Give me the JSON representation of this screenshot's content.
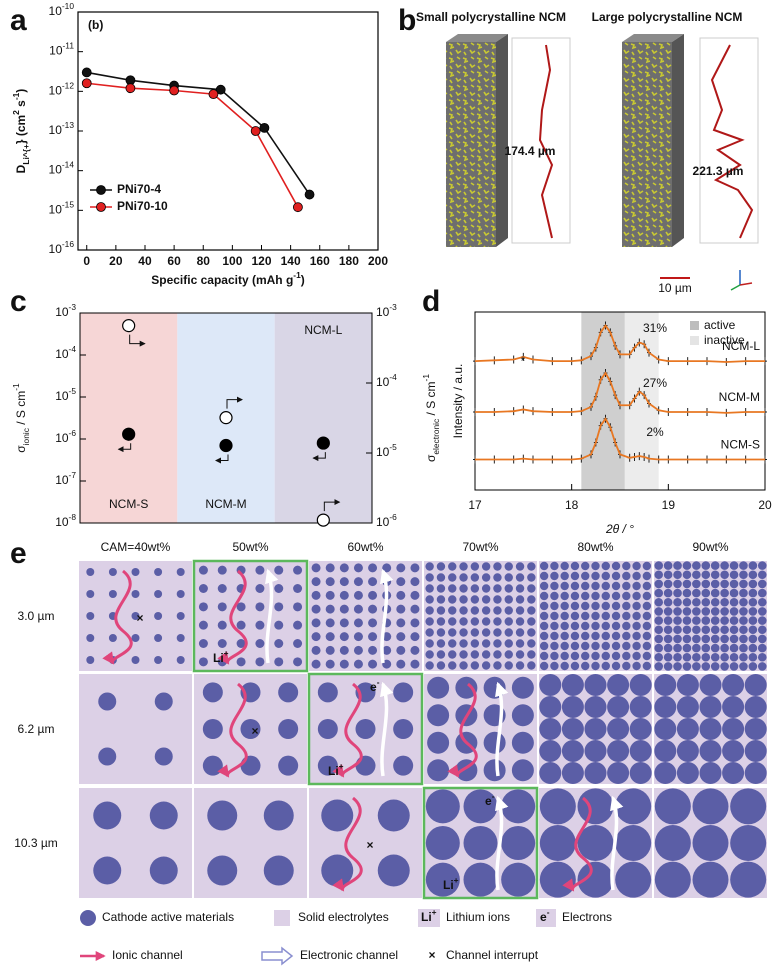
{
  "chart_data": [
    {
      "type": "line",
      "label": "a",
      "annotation": "(b)",
      "log_y": true,
      "xlabel": "Specific capacity (mAh g^{-1})",
      "ylabel": "D_{Li^{+}} (cm^{2} s^{-1})",
      "xlim": [
        -6,
        200
      ],
      "xticks": [
        0,
        20,
        40,
        60,
        80,
        100,
        120,
        140,
        160,
        180,
        200
      ],
      "ylim": [
        1e-16,
        1e-10
      ],
      "yticks": [
        {
          "value": 1e-16,
          "label": "10^{-16}"
        },
        {
          "value": 1e-15,
          "label": "10^{-15}"
        },
        {
          "value": 1e-14,
          "label": "10^{-14}"
        },
        {
          "value": 1e-13,
          "label": "10^{-13}"
        },
        {
          "value": 1e-12,
          "label": "10^{-12}"
        },
        {
          "value": 1e-11,
          "label": "10^{-11}"
        },
        {
          "value": 1e-10,
          "label": "10^{-10}"
        }
      ],
      "series": [
        {
          "name": "PNi70-4",
          "color": "#111111",
          "x": [
            0,
            30,
            60,
            92,
            122,
            153
          ],
          "values": [
            3e-12,
            1.9e-12,
            1.4e-12,
            1.1e-12,
            1.2e-13,
            2.5e-15
          ]
        },
        {
          "name": "PNi70-10",
          "color": "#e02020",
          "x": [
            0,
            30,
            60,
            87,
            116,
            145
          ],
          "values": [
            1.6e-12,
            1.2e-12,
            1.05e-12,
            8.5e-13,
            1e-13,
            1.2e-15
          ]
        }
      ]
    },
    {
      "type": "scatter",
      "label": "c",
      "log_y": true,
      "categories": [
        "NCM-S",
        "NCM-M",
        "NCM-L"
      ],
      "band_colors": [
        "#f6d6d6",
        "#dde8f8",
        "#d9d6e6"
      ],
      "ylabel": "σ_{ionic} / S cm^{-1}",
      "y2label": "σ_{electronic} / S cm^{-1}",
      "ylim": [
        1e-08,
        0.001
      ],
      "yticks": [
        {
          "value": 1e-08,
          "label": "10^{-8}"
        },
        {
          "value": 1e-07,
          "label": "10^{-7}"
        },
        {
          "value": 1e-06,
          "label": "10^{-6}"
        },
        {
          "value": 1e-05,
          "label": "10^{-5}"
        },
        {
          "value": 0.0001,
          "label": "10^{-4}"
        },
        {
          "value": 0.001,
          "label": "10^{-3}"
        }
      ],
      "y2lim": [
        1e-06,
        0.001
      ],
      "y2ticks": [
        {
          "value": 1e-06,
          "label": "10^{-6}"
        },
        {
          "value": 1e-05,
          "label": "10^{-5}"
        },
        {
          "value": 0.0001,
          "label": "10^{-4}"
        },
        {
          "value": 0.001,
          "label": "10^{-3}"
        }
      ],
      "series": [
        {
          "marker": "filled",
          "color": "#000000",
          "axis": "y",
          "values": [
            1.3e-06,
            7e-07,
            8e-07
          ]
        },
        {
          "marker": "open",
          "color": "#000000",
          "axis": "y2",
          "values": [
            0.00066,
            3.2e-05,
            1.1e-06
          ]
        }
      ]
    },
    {
      "type": "line",
      "label": "d",
      "xlabel": "2θ / °",
      "ylabel": "Intensity / a.u.",
      "xlim": [
        17,
        20
      ],
      "xticks": [
        17,
        18,
        19,
        20
      ],
      "ylim": [
        0,
        10.5
      ],
      "regions": [
        {
          "name": "active",
          "range": [
            18.1,
            18.55
          ],
          "color": "#cfcfcf"
        },
        {
          "name": "inactive",
          "range": [
            18.55,
            18.9
          ],
          "color": "#ececec"
        }
      ],
      "annotations": [
        "31%",
        "27%",
        "2%",
        "*"
      ],
      "x": [
        17,
        17.2,
        17.4,
        17.5,
        17.6,
        17.8,
        18,
        18.1,
        18.2,
        18.25,
        18.3,
        18.35,
        18.4,
        18.45,
        18.5,
        18.6,
        18.65,
        18.7,
        18.75,
        18.8,
        18.9,
        19,
        19.2,
        19.4,
        19.6,
        19.8,
        20
      ],
      "series": [
        {
          "name": "NCM-L",
          "color": "#e87722",
          "values": [
            7.6,
            7.65,
            7.7,
            7.85,
            7.7,
            7.6,
            7.6,
            7.65,
            7.9,
            8.4,
            9.3,
            9.7,
            9.3,
            8.5,
            8.0,
            8.0,
            8.4,
            8.7,
            8.6,
            8.1,
            7.7,
            7.6,
            7.6,
            7.6,
            7.55,
            7.6,
            7.6
          ]
        },
        {
          "name": "NCM-M",
          "color": "#e87722",
          "values": [
            4.6,
            4.6,
            4.65,
            4.75,
            4.65,
            4.6,
            4.6,
            4.65,
            4.9,
            5.5,
            6.5,
            6.9,
            6.4,
            5.6,
            5.0,
            5.0,
            5.4,
            5.8,
            5.6,
            5.1,
            4.7,
            4.6,
            4.6,
            4.6,
            4.55,
            4.6,
            4.6
          ]
        },
        {
          "name": "NCM-S",
          "color": "#e87722",
          "values": [
            1.8,
            1.8,
            1.8,
            1.85,
            1.8,
            1.8,
            1.8,
            1.85,
            2.1,
            2.8,
            3.8,
            4.2,
            3.7,
            2.8,
            2.1,
            1.9,
            1.95,
            2.0,
            1.95,
            1.85,
            1.8,
            1.8,
            1.8,
            1.8,
            1.8,
            1.8,
            1.8
          ]
        }
      ]
    }
  ],
  "panel_b": {
    "label": "b",
    "titles": [
      "Small polycrystalline NCM",
      "Large polycrystalline NCM"
    ],
    "path_lengths": [
      "174.4 µm",
      "221.3 µm"
    ],
    "scale_bar": "10 µm"
  },
  "panel_e": {
    "label": "e",
    "columns": [
      "CAM=40wt%",
      "50wt%",
      "60wt%",
      "70wt%",
      "80wt%",
      "90wt%"
    ],
    "rows": [
      "3.0 µm",
      "6.2 µm",
      "10.3 µm"
    ],
    "legend": {
      "cathode": "Cathode active materials",
      "electrolyte": "Solid electrolytes",
      "li_icon": "Li^{+}",
      "li": "Lithium ions",
      "e_icon": "e^{-}",
      "electrons": "Electrons",
      "ionic": "Ionic channel",
      "electronic": "Electronic channel",
      "interrupt": "Channel interrupt"
    }
  }
}
